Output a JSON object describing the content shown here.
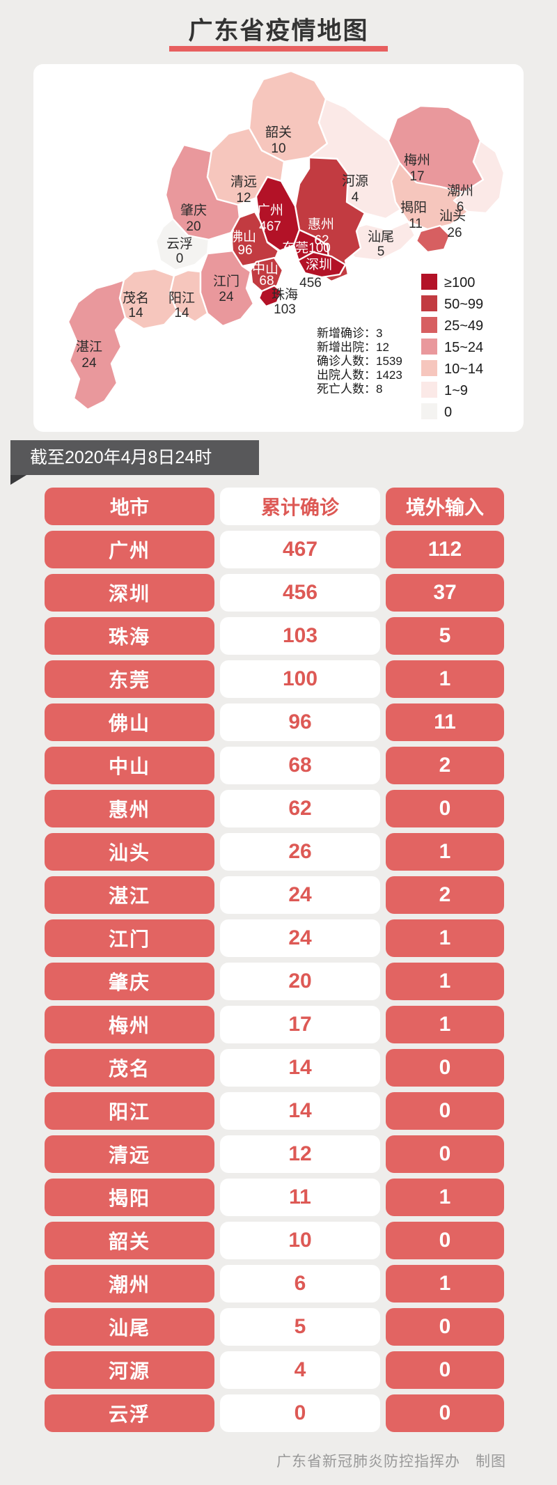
{
  "page": {
    "title": "广东省疫情地图",
    "as_of": "截至2020年4月8日24时",
    "footer": "广东省新冠肺炎防控指挥办　制图",
    "colors": {
      "page_bg": "#eeedeb",
      "accent_red": "#e26462",
      "accent_text_red": "#dd5955",
      "title_underline": "#e75f5f",
      "ribbon_gray": "#58585a"
    }
  },
  "map": {
    "stats": [
      {
        "label": "新增确诊",
        "value": "3"
      },
      {
        "label": "新增出院",
        "value": "12"
      },
      {
        "label": "确诊人数",
        "value": "1539"
      },
      {
        "label": "出院人数",
        "value": "1423"
      },
      {
        "label": "死亡人数",
        "value": "8"
      }
    ],
    "legend": [
      {
        "label": "≥100",
        "color": "#b31227"
      },
      {
        "label": "50~99",
        "color": "#c23b41"
      },
      {
        "label": "25~49",
        "color": "#d75f61"
      },
      {
        "label": "15~24",
        "color": "#e9989c"
      },
      {
        "label": "10~14",
        "color": "#f6c6bd"
      },
      {
        "label": "1~9",
        "color": "#fbe9e7"
      },
      {
        "label": "0",
        "color": "#f4f3f1"
      }
    ],
    "regions": [
      {
        "id": "zhanjiang",
        "name": "湛江",
        "value": 24,
        "color": "#e9989c"
      },
      {
        "id": "maoming",
        "name": "茂名",
        "value": 14,
        "color": "#f6c6bd"
      },
      {
        "id": "yangjiang",
        "name": "阳江",
        "value": 14,
        "color": "#f6c6bd"
      },
      {
        "id": "yunfu",
        "name": "云浮",
        "value": 0,
        "color": "#f4f3f1"
      },
      {
        "id": "zhaoqing",
        "name": "肇庆",
        "value": 20,
        "color": "#e9989c"
      },
      {
        "id": "qingyuan",
        "name": "清远",
        "value": 12,
        "color": "#f6c6bd"
      },
      {
        "id": "shaoguan",
        "name": "韶关",
        "value": 10,
        "color": "#f6c6bd"
      },
      {
        "id": "heyuan",
        "name": "河源",
        "value": 4,
        "color": "#fbe9e7"
      },
      {
        "id": "meizhou",
        "name": "梅州",
        "value": 17,
        "color": "#e9989c"
      },
      {
        "id": "chaozhou",
        "name": "潮州",
        "value": 6,
        "color": "#fbe9e7"
      },
      {
        "id": "jieyang",
        "name": "揭阳",
        "value": 11,
        "color": "#f6c6bd"
      },
      {
        "id": "shanwei",
        "name": "汕尾",
        "value": 5,
        "color": "#fbe9e7"
      },
      {
        "id": "huizhou",
        "name": "惠州",
        "value": 62,
        "color": "#c23b41"
      },
      {
        "id": "guangzhou",
        "name": "广州",
        "value": 467,
        "color": "#b31227"
      },
      {
        "id": "foshan",
        "name": "佛山",
        "value": 96,
        "color": "#c23b41"
      },
      {
        "id": "jiangmen",
        "name": "江门",
        "value": 24,
        "color": "#e9989c"
      },
      {
        "id": "dongguan",
        "name": "东莞",
        "value": 100,
        "color": "#b31227"
      },
      {
        "id": "zhongshan",
        "name": "中山",
        "value": 68,
        "color": "#c23b41"
      },
      {
        "id": "shenzhen",
        "name": "深圳",
        "value": 456,
        "color": "#b31227"
      },
      {
        "id": "zhuhai",
        "name": "珠海",
        "value": 103,
        "color": "#b31227"
      },
      {
        "id": "shantou",
        "name": "汕头",
        "value": 26,
        "color": "#d75f61"
      }
    ]
  },
  "table": {
    "headers": [
      "地市",
      "累计确诊",
      "境外输入"
    ],
    "rows": [
      {
        "city": "广州",
        "confirmed": 467,
        "imported": 112
      },
      {
        "city": "深圳",
        "confirmed": 456,
        "imported": 37
      },
      {
        "city": "珠海",
        "confirmed": 103,
        "imported": 5
      },
      {
        "city": "东莞",
        "confirmed": 100,
        "imported": 1
      },
      {
        "city": "佛山",
        "confirmed": 96,
        "imported": 11
      },
      {
        "city": "中山",
        "confirmed": 68,
        "imported": 2
      },
      {
        "city": "惠州",
        "confirmed": 62,
        "imported": 0
      },
      {
        "city": "汕头",
        "confirmed": 26,
        "imported": 1
      },
      {
        "city": "湛江",
        "confirmed": 24,
        "imported": 2
      },
      {
        "city": "江门",
        "confirmed": 24,
        "imported": 1
      },
      {
        "city": "肇庆",
        "confirmed": 20,
        "imported": 1
      },
      {
        "city": "梅州",
        "confirmed": 17,
        "imported": 1
      },
      {
        "city": "茂名",
        "confirmed": 14,
        "imported": 0
      },
      {
        "city": "阳江",
        "confirmed": 14,
        "imported": 0
      },
      {
        "city": "清远",
        "confirmed": 12,
        "imported": 0
      },
      {
        "city": "揭阳",
        "confirmed": 11,
        "imported": 1
      },
      {
        "city": "韶关",
        "confirmed": 10,
        "imported": 0
      },
      {
        "city": "潮州",
        "confirmed": 6,
        "imported": 1
      },
      {
        "city": "汕尾",
        "confirmed": 5,
        "imported": 0
      },
      {
        "city": "河源",
        "confirmed": 4,
        "imported": 0
      },
      {
        "city": "云浮",
        "confirmed": 0,
        "imported": 0
      }
    ]
  },
  "chart_data": {
    "type": "heatmap",
    "subtype": "choropleth-map",
    "title": "广东省疫情地图",
    "as_of": "截至2020年4月8日24时",
    "regions": [
      "广州",
      "深圳",
      "珠海",
      "东莞",
      "佛山",
      "中山",
      "惠州",
      "汕头",
      "湛江",
      "江门",
      "肇庆",
      "梅州",
      "茂名",
      "阳江",
      "清远",
      "揭阳",
      "韶关",
      "潮州",
      "汕尾",
      "河源",
      "云浮"
    ],
    "confirmed": [
      467,
      456,
      103,
      100,
      96,
      68,
      62,
      26,
      24,
      24,
      20,
      17,
      14,
      14,
      12,
      11,
      10,
      6,
      5,
      4,
      0
    ],
    "imported": [
      112,
      37,
      5,
      1,
      11,
      2,
      0,
      1,
      2,
      1,
      1,
      1,
      0,
      0,
      0,
      1,
      0,
      1,
      0,
      0,
      0
    ],
    "legend_buckets": [
      "≥100",
      "50~99",
      "25~49",
      "15~24",
      "10~14",
      "1~9",
      "0"
    ],
    "totals": {
      "新增确诊": 3,
      "新增出院": 12,
      "确诊人数": 1539,
      "出院人数": 1423,
      "死亡人数": 8
    }
  }
}
